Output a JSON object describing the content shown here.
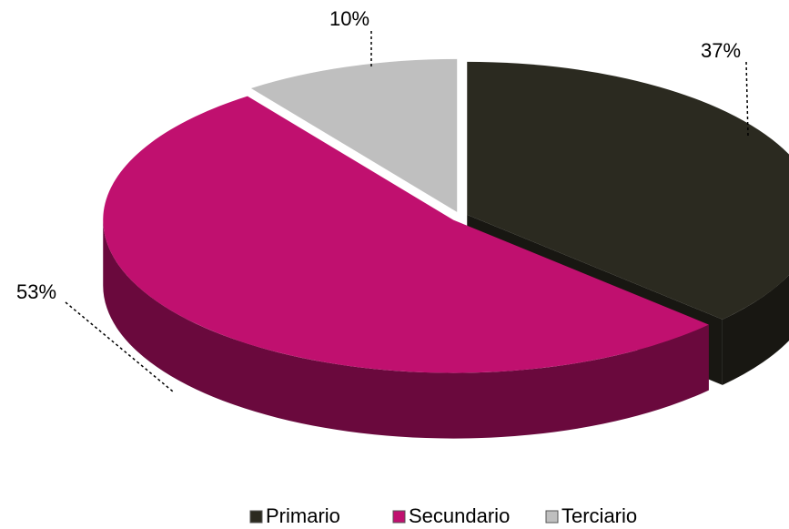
{
  "chart_data": {
    "type": "pie",
    "categories": [
      "Primario",
      "Secundario",
      "Terciario"
    ],
    "values": [
      37,
      53,
      10
    ],
    "value_labels": [
      "37%",
      "53%",
      "10%"
    ],
    "colors": [
      "#2b2a20",
      "#c0106f",
      "#bfbfbf"
    ],
    "legend": "bottom"
  }
}
